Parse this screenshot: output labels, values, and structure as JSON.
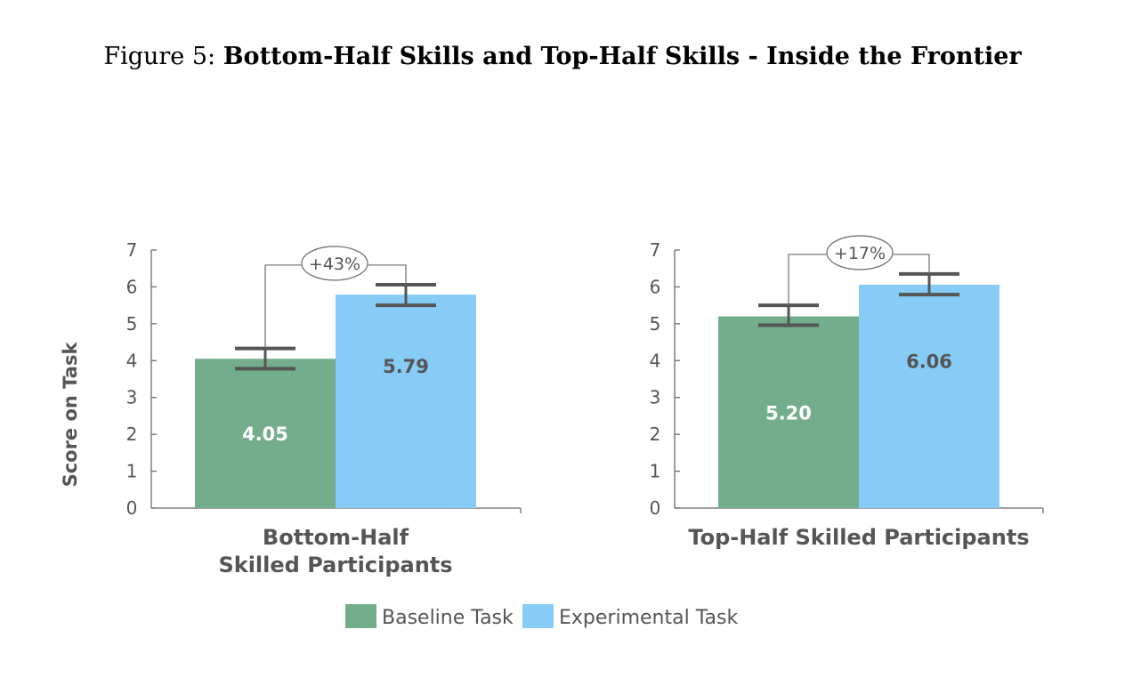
{
  "caption": {
    "prefix": "Figure 5:",
    "title": "Bottom-Half Skills and Top-Half Skills - Inside the Frontier"
  },
  "colors": {
    "baseline": "#74ad8c",
    "experimental": "#87cbf7",
    "axis": "#6b6b6b",
    "errorbar": "#555555",
    "bar_label_on_baseline": "#ffffff",
    "bar_label_on_experimental": "#555555"
  },
  "legend": {
    "baseline_label": "Baseline Task",
    "experimental_label": "Experimental Task"
  },
  "chart_data": [
    {
      "type": "bar",
      "ylabel": "Score on Task",
      "ylim": [
        0,
        7
      ],
      "yticks": [
        "0",
        "1",
        "2",
        "3",
        "4",
        "5",
        "6",
        "7"
      ],
      "category_lines": [
        "Bottom-Half",
        "Skilled Participants"
      ],
      "series": [
        {
          "name": "Baseline Task",
          "value": 4.05,
          "label": "4.05",
          "err_low": 3.78,
          "err_high": 4.33
        },
        {
          "name": "Experimental Task",
          "value": 5.79,
          "label": "5.79",
          "err_low": 5.5,
          "err_high": 6.06
        }
      ],
      "annotation": "+43%"
    },
    {
      "type": "bar",
      "ylabel": "",
      "ylim": [
        0,
        7
      ],
      "yticks": [
        "0",
        "1",
        "2",
        "3",
        "4",
        "5",
        "6",
        "7"
      ],
      "category_lines": [
        "Top-Half Skilled Participants"
      ],
      "series": [
        {
          "name": "Baseline Task",
          "value": 5.2,
          "label": "5.20",
          "err_low": 4.96,
          "err_high": 5.5
        },
        {
          "name": "Experimental Task",
          "value": 6.06,
          "label": "6.06",
          "err_low": 5.79,
          "err_high": 6.35
        }
      ],
      "annotation": "+17%"
    }
  ]
}
